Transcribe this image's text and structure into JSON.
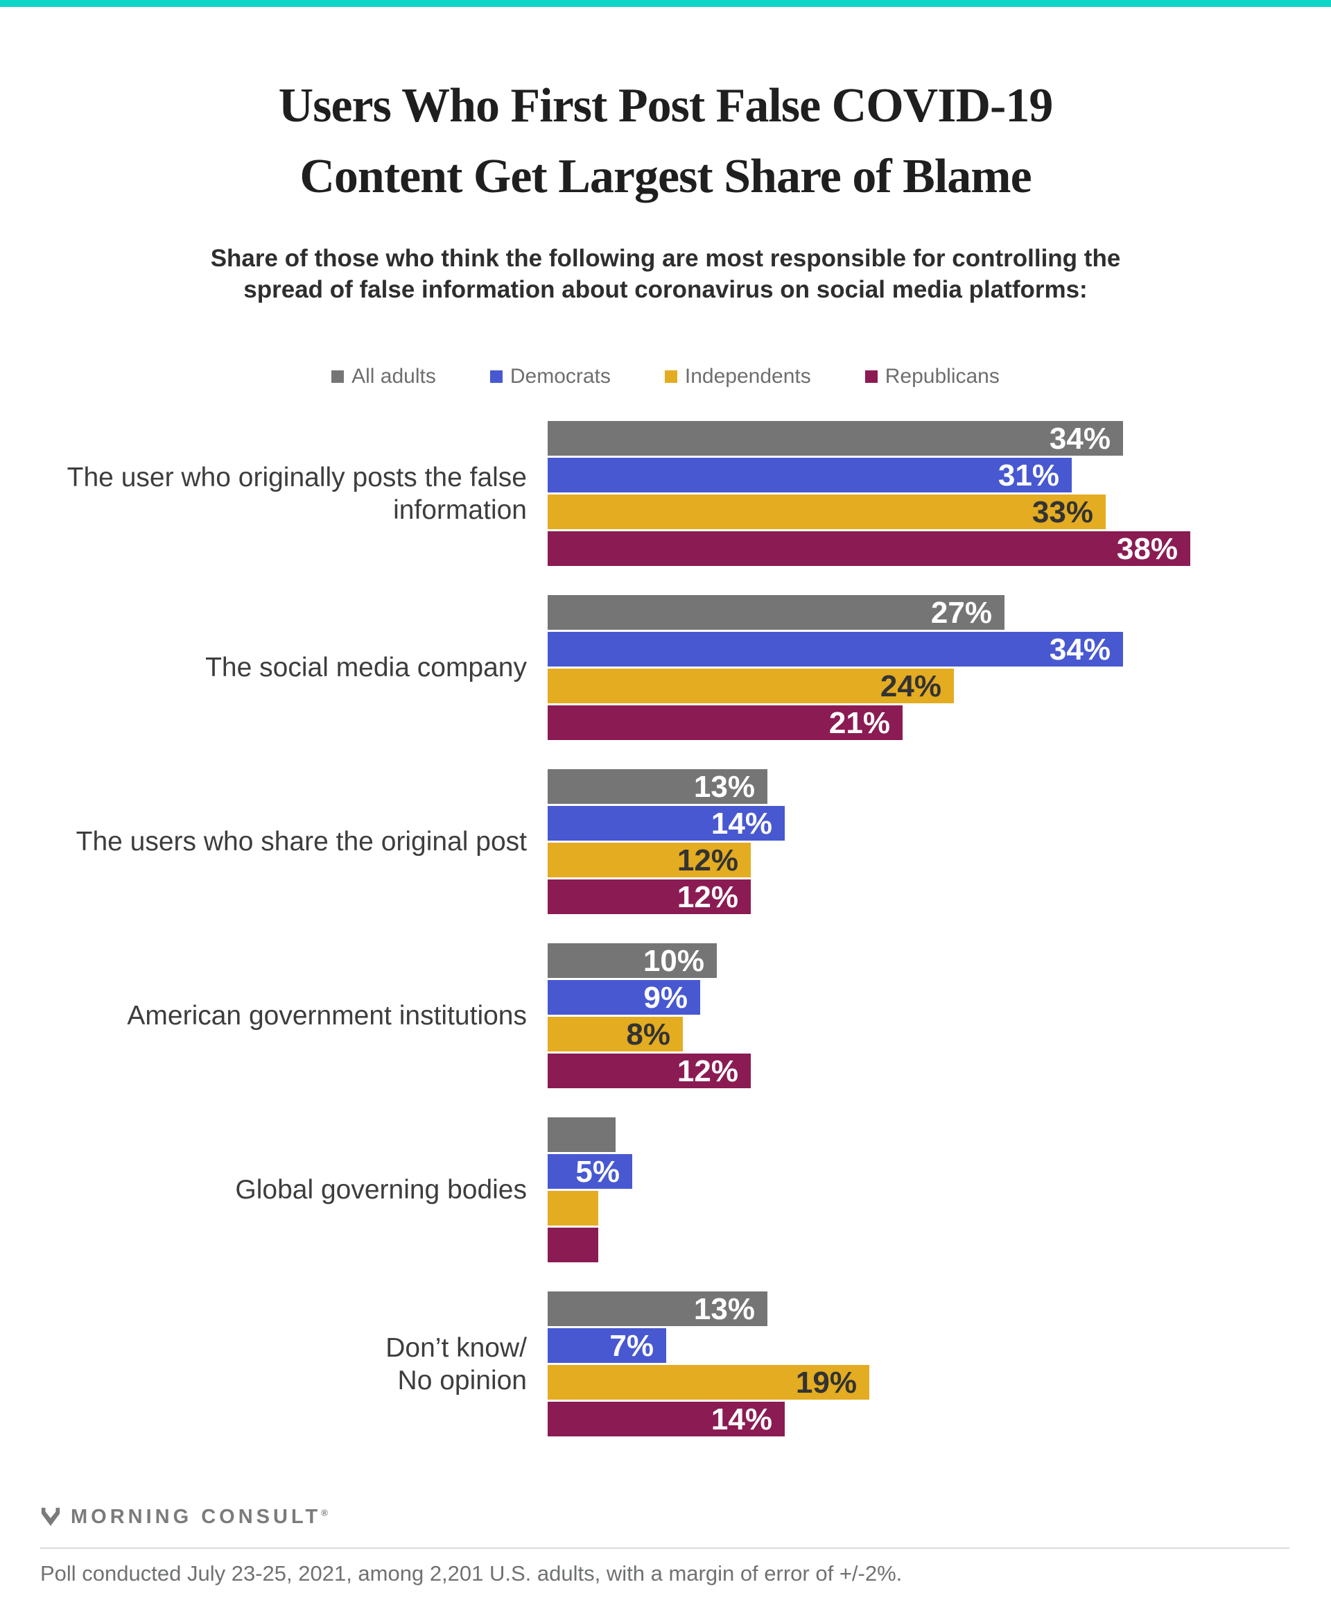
{
  "page": {
    "accent_color": "#0ed5c8",
    "title_line1": "Users Who First Post False COVID-19",
    "title_line2": "Content Get Largest Share of Blame",
    "subtitle_line1": "Share of those who think the following are most responsible for controlling the",
    "subtitle_line2": "spread of false information about coronavirus on social media platforms:",
    "logo_text": "MORNING CONSULT",
    "logo_registered": "®",
    "logo_mark_icon": "morning-consult-m-chevron",
    "footnote": "Poll conducted July 23-25, 2021, among 2,201 U.S. adults, with a margin of error of +/-2%."
  },
  "chart_data": {
    "type": "bar",
    "orientation": "horizontal",
    "title": "Users Who First Post False COVID-19 Content Get Largest Share of Blame",
    "subtitle": "Share of those who think the following are most responsible for controlling the spread of false information about coronavirus on social media platforms:",
    "unit": "%",
    "xlim": [
      0,
      41
    ],
    "grid": "off",
    "axes": "hidden",
    "legend_position": "top-center",
    "value_label_style": "inside right end of bar; labels omitted for bars under 5%",
    "categories": [
      [
        "The user who originally posts the false",
        "information"
      ],
      [
        "The social media company"
      ],
      [
        "The users who share the original post"
      ],
      [
        "American government institutions"
      ],
      [
        "Global governing bodies"
      ],
      [
        "Don’t know/",
        "No opinion"
      ]
    ],
    "series": [
      {
        "name": "All adults",
        "color": "#757575",
        "label_color": "#ffffff",
        "values": [
          34,
          27,
          13,
          10,
          4,
          13
        ],
        "labels": [
          "34%",
          "27%",
          "13%",
          "10%",
          "",
          "13%"
        ]
      },
      {
        "name": "Democrats",
        "color": "#4758d1",
        "label_color": "#ffffff",
        "values": [
          31,
          34,
          14,
          9,
          5,
          7
        ],
        "labels": [
          "31%",
          "34%",
          "14%",
          "9%",
          "5%",
          "7%"
        ]
      },
      {
        "name": "Independents",
        "color": "#e3ac21",
        "label_color": "#333333",
        "values": [
          33,
          24,
          12,
          8,
          3,
          19
        ],
        "labels": [
          "33%",
          "24%",
          "12%",
          "8%",
          "",
          "19%"
        ]
      },
      {
        "name": "Republicans",
        "color": "#8b1b53",
        "label_color": "#ffffff",
        "values": [
          38,
          21,
          12,
          12,
          3,
          14
        ],
        "labels": [
          "38%",
          "21%",
          "12%",
          "12%",
          "",
          "14%"
        ]
      }
    ],
    "footnote": "Poll conducted July 23-25, 2021, among 2,201 U.S. adults, with a margin of error of +/-2%.",
    "source": "MORNING CONSULT"
  }
}
